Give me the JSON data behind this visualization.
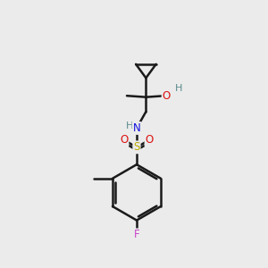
{
  "bg_color": "#ebebeb",
  "bond_color": "#1a1a1a",
  "bond_width": 1.8,
  "atom_colors": {
    "C": "#1a1a1a",
    "H": "#5a8a8a",
    "N": "#1010dd",
    "O": "#dd1010",
    "S": "#bbaa00",
    "F": "#cc44cc"
  },
  "font_size": 8.5,
  "font_size_small": 7.5
}
